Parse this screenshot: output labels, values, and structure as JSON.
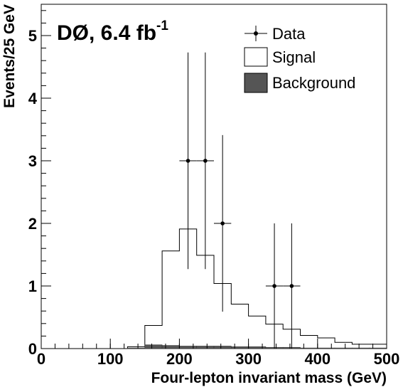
{
  "chart_data": {
    "type": "histogram",
    "experiment_label": "DØ, 6.4 fb",
    "experiment_label_sup": "-1",
    "xlabel": "Four-lepton invariant mass (GeV)",
    "ylabel": "Events/25 GeV",
    "xlim": [
      0,
      500
    ],
    "ylim": [
      0,
      5.5
    ],
    "x_ticks": [
      0,
      100,
      200,
      300,
      400,
      500
    ],
    "y_ticks": [
      0,
      1,
      2,
      3,
      4,
      5
    ],
    "legend_position": "top-right",
    "bin_edges": [
      0,
      25,
      50,
      75,
      100,
      125,
      150,
      175,
      200,
      225,
      250,
      275,
      300,
      325,
      350,
      375,
      400,
      425,
      450,
      475,
      500
    ],
    "series": [
      {
        "name": "Data",
        "kind": "points",
        "x": [
          212.5,
          237.5,
          262.5,
          337.5,
          362.5
        ],
        "y": [
          3,
          3,
          2,
          1,
          1
        ],
        "yerr_low": [
          1.73,
          1.73,
          1.41,
          1.0,
          1.0
        ],
        "yerr_high": [
          1.73,
          1.73,
          1.41,
          1.0,
          1.0
        ],
        "xerr": 12.5
      },
      {
        "name": "Signal",
        "kind": "hist-outline",
        "values": [
          0,
          0,
          0,
          0,
          0,
          0.03,
          0.37,
          1.56,
          1.91,
          1.49,
          1.04,
          0.71,
          0.52,
          0.39,
          0.31,
          0.21,
          0.17,
          0.1,
          0.07,
          0.07
        ]
      },
      {
        "name": "Background",
        "kind": "hist-filled",
        "values": [
          0,
          0,
          0,
          0,
          0,
          0.01,
          0.06,
          0.05,
          0.04,
          0.04,
          0.04,
          0.03,
          0.03,
          0.02,
          0.02,
          0.01,
          0.01,
          0.01,
          0.01,
          0.01
        ]
      }
    ],
    "colors": {
      "data": "#000000",
      "signal_line": "#000000",
      "signal_fill": "#ffffff",
      "background_fill": "#555555"
    }
  }
}
